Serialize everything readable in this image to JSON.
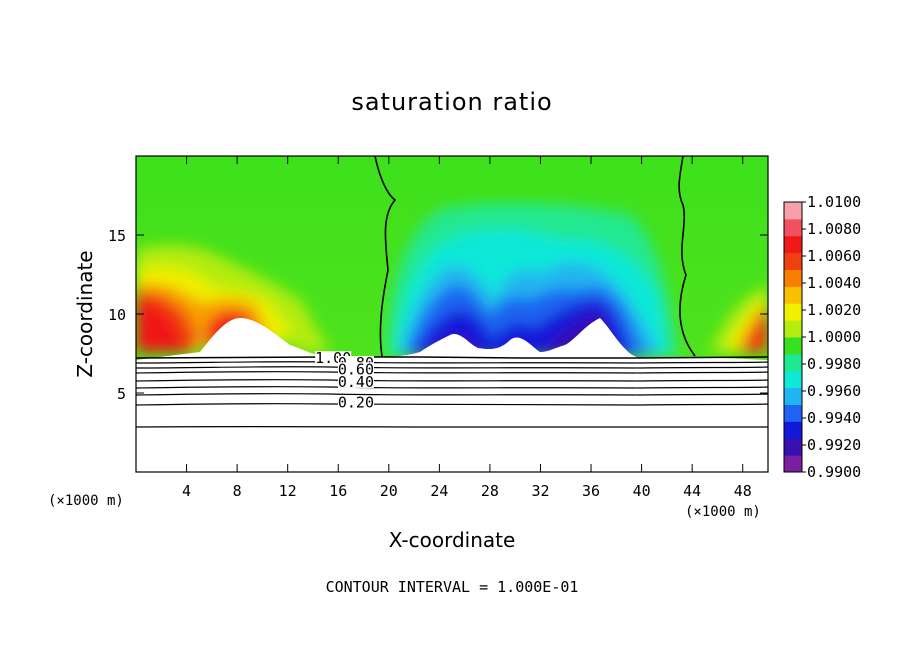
{
  "chart_data": {
    "type": "heatmap",
    "title": "saturation ratio",
    "xlabel": "X-coordinate",
    "ylabel": "Z-coordinate",
    "x_unit_label": "(×1000 m)",
    "x_unit_label_right": "(×1000 m)",
    "xlim": [
      0,
      50
    ],
    "ylim": [
      0,
      20
    ],
    "x_ticks": [
      4,
      8,
      12,
      16,
      20,
      24,
      28,
      32,
      36,
      40,
      44,
      48
    ],
    "y_ticks": [
      5,
      10,
      15
    ],
    "colorbar": {
      "min": 0.99,
      "max": 1.01,
      "labels": [
        "1.0100",
        "1.0080",
        "1.0060",
        "1.0040",
        "1.0020",
        "1.0000",
        "0.9980",
        "0.9960",
        "0.9940",
        "0.9920",
        "0.9900"
      ],
      "colors": [
        "#7b1fa2",
        "#3a0fb0",
        "#1218d8",
        "#1e64f0",
        "#20b4f0",
        "#10e8d8",
        "#20e890",
        "#38e020",
        "#b4ec10",
        "#f0f000",
        "#f8c000",
        "#f88000",
        "#f04010",
        "#f01818",
        "#f05060",
        "#f8a0a8"
      ]
    },
    "contour_labels": [
      {
        "label": "1.00",
        "x": 15.6,
        "y": 7.2
      },
      {
        "label": "0.80",
        "x": 17.4,
        "y": 6.9
      },
      {
        "label": "0.60",
        "x": 17.4,
        "y": 6.5
      },
      {
        "label": "0.40",
        "x": 17.4,
        "y": 5.7
      },
      {
        "label": "0.20",
        "x": 17.4,
        "y": 4.4
      }
    ],
    "contour_interval": "CONTOUR INTERVAL = 1.000E-01"
  }
}
